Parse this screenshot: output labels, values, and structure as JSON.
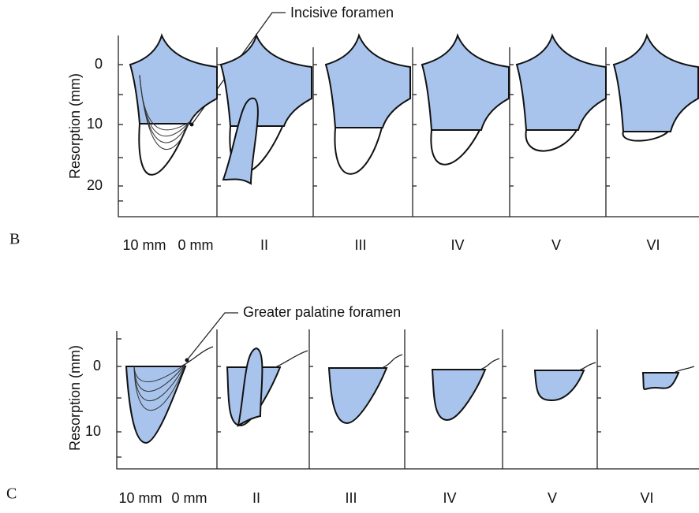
{
  "panels": [
    {
      "label": "B",
      "y_label": "Resorption (mm)",
      "ticks": [
        0,
        10,
        20
      ],
      "foramen": "Incisive foramen",
      "columns": [
        "10 mm",
        "0 mm",
        "II",
        "III",
        "IV",
        "V",
        "VI"
      ]
    },
    {
      "label": "C",
      "y_label": "Resorption (mm)",
      "ticks": [
        0,
        10
      ],
      "foramen": "Greater palatine foramen",
      "columns": [
        "10 mm",
        "0 mm",
        "II",
        "III",
        "IV",
        "V",
        "VI"
      ]
    }
  ]
}
